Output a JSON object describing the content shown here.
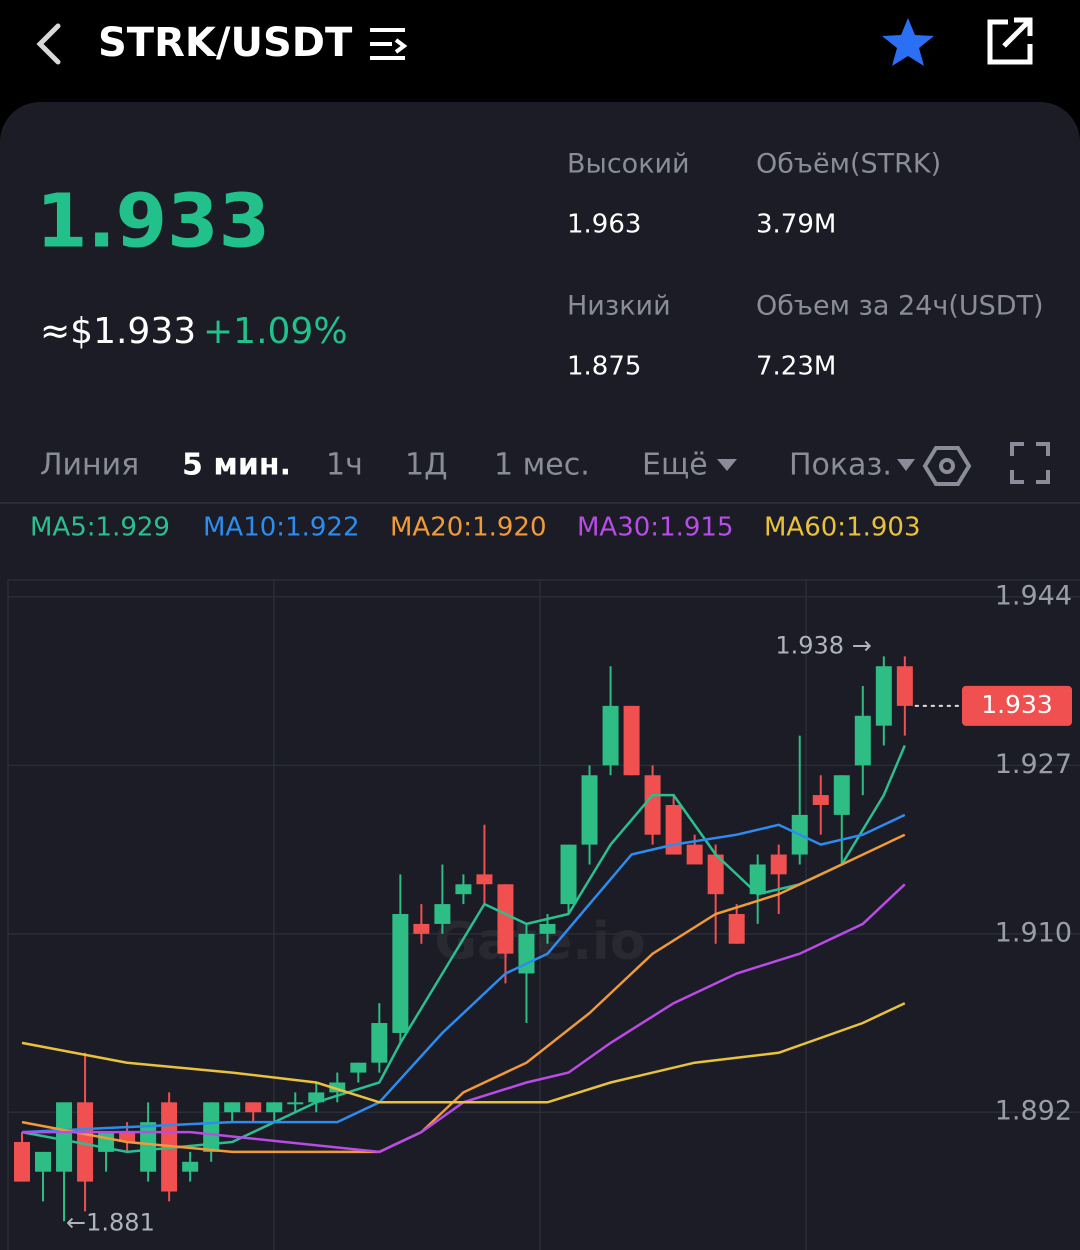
{
  "header": {
    "title": "STRK/USDT"
  },
  "ticker": {
    "price": "1.933",
    "usd_price": "≈$1.933",
    "change": "+1.09%",
    "stats": [
      {
        "label": "Высокий",
        "value": "1.963"
      },
      {
        "label": "Объём(STRK)",
        "value": "3.79M"
      },
      {
        "label": "Низкий",
        "value": "1.875"
      },
      {
        "label": "Объем за 24ч(USDT)",
        "value": "7.23M"
      }
    ]
  },
  "tabs": [
    "Линия",
    "5 мин.",
    "1ч",
    "1Д",
    "1 мес.",
    "Ещё",
    "Показ."
  ],
  "watermark": "Gate.io",
  "chart_data": {
    "type": "candlestick",
    "up_color": "#2ebd85",
    "down_color": "#f0504f",
    "open": [
      1.889,
      1.886,
      1.886,
      1.893,
      1.888,
      1.89,
      1.886,
      1.893,
      1.886,
      1.888,
      1.892,
      1.893,
      1.892,
      1.893,
      1.893,
      1.894,
      1.896,
      1.897,
      1.9,
      1.911,
      1.911,
      1.914,
      1.916,
      1.915,
      1.906,
      1.91,
      1.913,
      1.919,
      1.927,
      1.933,
      1.926,
      1.923,
      1.919,
      1.918,
      1.912,
      1.914,
      1.918,
      1.918,
      1.924,
      1.922,
      1.927,
      1.931,
      1.937
    ],
    "high": [
      1.89,
      1.888,
      1.893,
      1.898,
      1.89,
      1.891,
      1.893,
      1.894,
      1.888,
      1.893,
      1.893,
      1.893,
      1.893,
      1.894,
      1.895,
      1.896,
      1.897,
      1.903,
      1.916,
      1.913,
      1.917,
      1.916,
      1.921,
      1.915,
      1.911,
      1.912,
      1.919,
      1.927,
      1.937,
      1.933,
      1.927,
      1.924,
      1.92,
      1.919,
      1.913,
      1.918,
      1.919,
      1.93,
      1.926,
      1.926,
      1.935,
      1.938,
      1.938
    ],
    "low": [
      1.885,
      1.883,
      1.881,
      1.882,
      1.886,
      1.888,
      1.885,
      1.883,
      1.885,
      1.887,
      1.891,
      1.891,
      1.891,
      1.892,
      1.892,
      1.893,
      1.895,
      1.896,
      1.899,
      1.909,
      1.91,
      1.913,
      1.913,
      1.905,
      1.901,
      1.909,
      1.912,
      1.917,
      1.926,
      1.926,
      1.919,
      1.918,
      1.917,
      1.909,
      1.909,
      1.911,
      1.912,
      1.917,
      1.92,
      1.917,
      1.924,
      1.929,
      1.93
    ],
    "close": [
      1.885,
      1.888,
      1.893,
      1.885,
      1.89,
      1.889,
      1.891,
      1.884,
      1.887,
      1.893,
      1.893,
      1.892,
      1.893,
      1.893,
      1.894,
      1.895,
      1.897,
      1.901,
      1.912,
      1.91,
      1.913,
      1.915,
      1.915,
      1.908,
      1.91,
      1.911,
      1.919,
      1.926,
      1.933,
      1.926,
      1.92,
      1.918,
      1.917,
      1.914,
      1.909,
      1.917,
      1.916,
      1.922,
      1.923,
      1.926,
      1.932,
      1.937,
      1.933
    ],
    "series": [
      {
        "name": "MA5:1.929",
        "color": "#2bbf8f",
        "x": [
          0,
          5,
          10,
          14,
          17,
          18,
          20,
          22,
          24,
          26,
          28,
          30,
          31,
          33,
          35,
          37,
          39,
          41,
          42
        ],
        "values": [
          1.89,
          1.888,
          1.889,
          1.893,
          1.895,
          1.899,
          1.906,
          1.913,
          1.911,
          1.912,
          1.919,
          1.924,
          1.924,
          1.918,
          1.914,
          1.915,
          1.917,
          1.924,
          1.929
        ]
      },
      {
        "name": "MA10:1.922",
        "color": "#2d8cf0",
        "x": [
          0,
          10,
          15,
          17,
          20,
          23,
          25,
          27,
          29,
          31,
          34,
          36,
          38,
          40,
          42
        ],
        "values": [
          1.89,
          1.891,
          1.891,
          1.893,
          1.9,
          1.906,
          1.908,
          1.913,
          1.918,
          1.919,
          1.92,
          1.921,
          1.919,
          1.92,
          1.922
        ]
      },
      {
        "name": "MA20:1.920",
        "color": "#f09a3a",
        "x": [
          0,
          5,
          10,
          17,
          19,
          21,
          24,
          27,
          30,
          33,
          36,
          39,
          42
        ],
        "values": [
          1.891,
          1.889,
          1.888,
          1.888,
          1.89,
          1.894,
          1.897,
          1.902,
          1.908,
          1.912,
          1.914,
          1.917,
          1.92
        ]
      },
      {
        "name": "MA30:1.915",
        "color": "#b94be6",
        "x": [
          0,
          8,
          17,
          19,
          21,
          24,
          26,
          28,
          31,
          34,
          37,
          40,
          42
        ],
        "values": [
          1.89,
          1.89,
          1.888,
          1.89,
          1.893,
          1.895,
          1.896,
          1.899,
          1.903,
          1.906,
          1.908,
          1.911,
          1.915
        ]
      },
      {
        "name": "MA60:1.903",
        "color": "#e8c23c",
        "x": [
          0,
          5,
          10,
          14,
          17,
          20,
          25,
          28,
          32,
          36,
          40,
          42
        ],
        "values": [
          1.899,
          1.897,
          1.896,
          1.895,
          1.893,
          1.893,
          1.893,
          1.895,
          1.897,
          1.898,
          1.901,
          1.903
        ]
      }
    ],
    "ylim": [
      1.8781,
      1.9457
    ],
    "yticks": [
      1.944,
      1.927,
      {
        "value": 1.91,
        "label": "1.910"
      },
      1.892
    ],
    "grid": true,
    "high_label": "1.938 →",
    "low_label": "←1.881",
    "last_price_label": "1.933"
  }
}
